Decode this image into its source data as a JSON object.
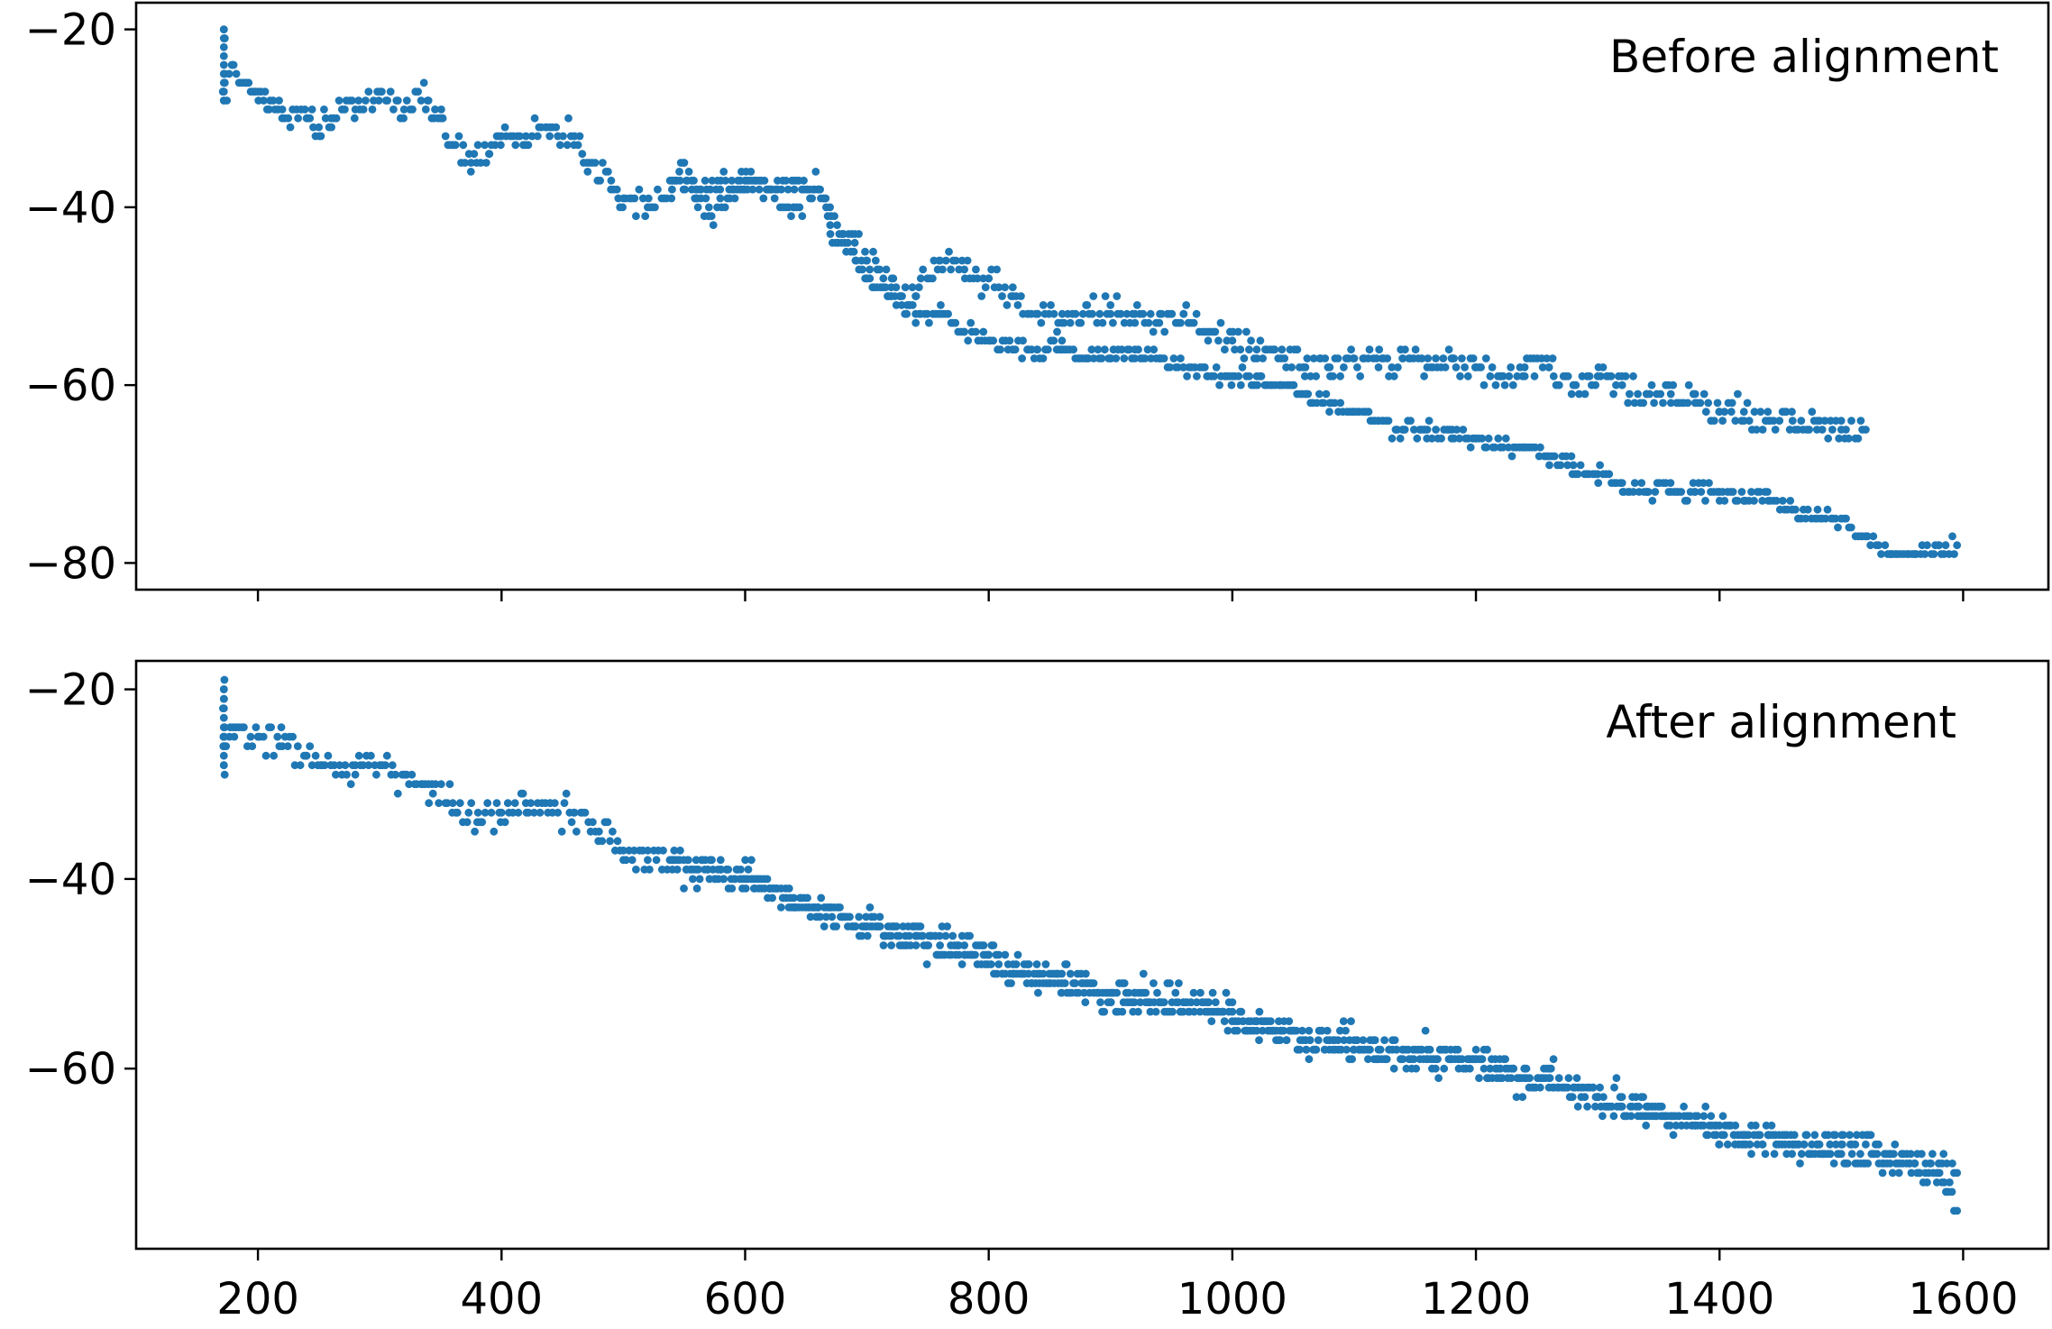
{
  "colors": {
    "marker": "#1f77b4",
    "axes": "#000000",
    "background": "#ffffff"
  },
  "chart_data": [
    {
      "type": "scatter",
      "annotation": "Before alignment",
      "annotation_position": "top-right",
      "x_ticks": [
        200,
        400,
        600,
        800,
        1000,
        1200,
        1400,
        1600
      ],
      "x_tick_labels_shown": false,
      "y_ticks": [
        -20,
        -40,
        -60,
        -80
      ],
      "y_tick_labels": [
        "−20",
        "−40",
        "−60",
        "−80"
      ],
      "xlim": [
        100,
        1670
      ],
      "ylim": [
        -83,
        -17
      ],
      "grid": false,
      "trajectories": [
        {
          "label": "",
          "points": [
            [
              172,
              -20
            ],
            [
              172,
              -25
            ],
            [
              172,
              -28
            ],
            [
              180,
              -24
            ],
            [
              190,
              -26
            ],
            [
              200,
              -27
            ],
            [
              210,
              -28
            ],
            [
              220,
              -29
            ],
            [
              240,
              -30
            ],
            [
              250,
              -31
            ],
            [
              260,
              -30
            ],
            [
              280,
              -29
            ],
            [
              300,
              -27
            ],
            [
              320,
              -29
            ],
            [
              340,
              -28
            ],
            [
              350,
              -30
            ],
            [
              360,
              -33
            ],
            [
              375,
              -35
            ],
            [
              390,
              -34
            ],
            [
              400,
              -32
            ],
            [
              420,
              -32
            ],
            [
              440,
              -31
            ],
            [
              460,
              -32
            ],
            [
              470,
              -35
            ],
            [
              490,
              -37
            ],
            [
              500,
              -39
            ],
            [
              520,
              -40
            ],
            [
              540,
              -38
            ],
            [
              550,
              -35
            ],
            [
              560,
              -39
            ],
            [
              570,
              -41
            ],
            [
              590,
              -38
            ],
            [
              600,
              -37
            ],
            [
              620,
              -38
            ],
            [
              640,
              -40
            ],
            [
              660,
              -38
            ],
            [
              670,
              -43
            ],
            [
              690,
              -44
            ],
            [
              700,
              -46
            ],
            [
              720,
              -49
            ],
            [
              740,
              -50
            ],
            [
              760,
              -46
            ],
            [
              780,
              -47
            ],
            [
              800,
              -48
            ],
            [
              820,
              -50
            ],
            [
              840,
              -52
            ],
            [
              860,
              -53
            ],
            [
              880,
              -51
            ],
            [
              900,
              -52
            ],
            [
              920,
              -52
            ],
            [
              940,
              -53
            ],
            [
              960,
              -52
            ],
            [
              980,
              -54
            ],
            [
              1000,
              -55
            ],
            [
              1020,
              -56
            ],
            [
              1040,
              -57
            ],
            [
              1060,
              -58
            ],
            [
              1080,
              -58
            ],
            [
              1100,
              -57
            ],
            [
              1120,
              -58
            ],
            [
              1140,
              -57
            ],
            [
              1160,
              -58
            ],
            [
              1180,
              -57
            ],
            [
              1200,
              -58
            ],
            [
              1220,
              -59
            ],
            [
              1240,
              -58
            ],
            [
              1260,
              -58
            ],
            [
              1280,
              -60
            ],
            [
              1300,
              -59
            ],
            [
              1320,
              -60
            ],
            [
              1340,
              -61
            ],
            [
              1360,
              -61
            ],
            [
              1380,
              -62
            ],
            [
              1400,
              -63
            ],
            [
              1420,
              -63
            ],
            [
              1440,
              -64
            ],
            [
              1460,
              -64
            ],
            [
              1480,
              -65
            ],
            [
              1500,
              -65
            ],
            [
              1520,
              -65
            ]
          ],
          "spread": 2.2
        },
        {
          "label": "",
          "points": [
            [
              540,
              -37
            ],
            [
              560,
              -38
            ],
            [
              580,
              -37
            ],
            [
              600,
              -37
            ],
            [
              620,
              -38
            ],
            [
              640,
              -37
            ],
            [
              660,
              -38
            ],
            [
              680,
              -43
            ],
            [
              700,
              -48
            ],
            [
              720,
              -50
            ],
            [
              740,
              -52
            ],
            [
              760,
              -52
            ],
            [
              780,
              -54
            ],
            [
              800,
              -55
            ],
            [
              820,
              -56
            ],
            [
              840,
              -56
            ],
            [
              860,
              -56
            ],
            [
              880,
              -57
            ],
            [
              900,
              -57
            ],
            [
              920,
              -56
            ],
            [
              940,
              -57
            ],
            [
              960,
              -58
            ],
            [
              980,
              -59
            ],
            [
              1000,
              -59
            ],
            [
              1020,
              -59
            ],
            [
              1040,
              -60
            ],
            [
              1060,
              -61
            ],
            [
              1080,
              -62
            ],
            [
              1100,
              -63
            ],
            [
              1120,
              -64
            ],
            [
              1140,
              -65
            ],
            [
              1160,
              -65
            ],
            [
              1180,
              -66
            ],
            [
              1200,
              -66
            ],
            [
              1220,
              -67
            ],
            [
              1240,
              -67
            ],
            [
              1260,
              -68
            ],
            [
              1280,
              -69
            ],
            [
              1300,
              -70
            ],
            [
              1320,
              -71
            ],
            [
              1340,
              -72
            ],
            [
              1360,
              -72
            ],
            [
              1380,
              -72
            ],
            [
              1400,
              -72
            ],
            [
              1420,
              -73
            ],
            [
              1440,
              -73
            ],
            [
              1460,
              -74
            ],
            [
              1480,
              -75
            ],
            [
              1500,
              -75
            ],
            [
              1520,
              -77
            ],
            [
              1540,
              -79
            ],
            [
              1560,
              -79
            ],
            [
              1580,
              -78
            ],
            [
              1595,
              -78
            ]
          ],
          "spread": 1.2
        }
      ]
    },
    {
      "type": "scatter",
      "annotation": "After alignment",
      "annotation_position": "top-right",
      "x_ticks": [
        200,
        400,
        600,
        800,
        1000,
        1200,
        1400,
        1600
      ],
      "x_tick_labels": [
        "200",
        "400",
        "600",
        "800",
        "1000",
        "1200",
        "1400",
        "1600"
      ],
      "y_ticks": [
        -20,
        -40,
        -60
      ],
      "y_tick_labels": [
        "−20",
        "−40",
        "−60"
      ],
      "xlim": [
        100,
        1670
      ],
      "ylim": [
        -79,
        -17
      ],
      "grid": false,
      "trajectories": [
        {
          "label": "",
          "points": [
            [
              172,
              -20
            ],
            [
              172,
              -25
            ],
            [
              172,
              -28
            ],
            [
              180,
              -24
            ],
            [
              200,
              -25
            ],
            [
              220,
              -26
            ],
            [
              240,
              -27
            ],
            [
              260,
              -28
            ],
            [
              280,
              -28
            ],
            [
              300,
              -28
            ],
            [
              320,
              -29
            ],
            [
              340,
              -30
            ],
            [
              360,
              -32
            ],
            [
              380,
              -34
            ],
            [
              400,
              -33
            ],
            [
              420,
              -32
            ],
            [
              440,
              -32
            ],
            [
              460,
              -33
            ],
            [
              480,
              -35
            ],
            [
              500,
              -37
            ],
            [
              520,
              -38
            ],
            [
              540,
              -38
            ],
            [
              560,
              -39
            ],
            [
              580,
              -39
            ],
            [
              600,
              -40
            ],
            [
              620,
              -41
            ],
            [
              640,
              -42
            ],
            [
              660,
              -43
            ],
            [
              680,
              -44
            ],
            [
              700,
              -45
            ],
            [
              720,
              -46
            ],
            [
              740,
              -46
            ],
            [
              760,
              -47
            ],
            [
              780,
              -47
            ],
            [
              800,
              -48
            ],
            [
              820,
              -49
            ],
            [
              840,
              -50
            ],
            [
              860,
              -50
            ],
            [
              880,
              -51
            ],
            [
              900,
              -52
            ],
            [
              920,
              -52
            ],
            [
              940,
              -53
            ],
            [
              960,
              -53
            ],
            [
              980,
              -53
            ],
            [
              1000,
              -54
            ],
            [
              1020,
              -55
            ],
            [
              1040,
              -56
            ],
            [
              1060,
              -57
            ],
            [
              1080,
              -57
            ],
            [
              1100,
              -57
            ],
            [
              1120,
              -58
            ],
            [
              1140,
              -58
            ],
            [
              1160,
              -58
            ],
            [
              1180,
              -59
            ],
            [
              1200,
              -59
            ],
            [
              1220,
              -60
            ],
            [
              1240,
              -61
            ],
            [
              1260,
              -61
            ],
            [
              1280,
              -62
            ],
            [
              1300,
              -63
            ],
            [
              1320,
              -64
            ],
            [
              1340,
              -64
            ],
            [
              1360,
              -65
            ],
            [
              1380,
              -65
            ],
            [
              1400,
              -66
            ],
            [
              1420,
              -67
            ],
            [
              1440,
              -67
            ],
            [
              1460,
              -68
            ],
            [
              1480,
              -68
            ],
            [
              1500,
              -68
            ],
            [
              1520,
              -68
            ],
            [
              1540,
              -69
            ],
            [
              1560,
              -70
            ],
            [
              1580,
              -70
            ],
            [
              1595,
              -71
            ]
          ],
          "spread": 2.4
        },
        {
          "label": "",
          "points": [
            [
              540,
              -38
            ],
            [
              580,
              -39
            ],
            [
              620,
              -41
            ],
            [
              660,
              -43
            ],
            [
              700,
              -45
            ],
            [
              740,
              -46
            ],
            [
              780,
              -48
            ],
            [
              820,
              -50
            ],
            [
              860,
              -51
            ],
            [
              900,
              -53
            ],
            [
              940,
              -53
            ],
            [
              980,
              -54
            ],
            [
              1020,
              -56
            ],
            [
              1060,
              -57
            ],
            [
              1100,
              -58
            ],
            [
              1140,
              -59
            ],
            [
              1180,
              -59
            ],
            [
              1220,
              -60
            ],
            [
              1260,
              -62
            ],
            [
              1300,
              -63
            ],
            [
              1340,
              -65
            ],
            [
              1380,
              -66
            ],
            [
              1420,
              -68
            ],
            [
              1460,
              -68
            ],
            [
              1500,
              -69
            ],
            [
              1540,
              -70
            ],
            [
              1580,
              -71
            ],
            [
              1595,
              -75
            ]
          ],
          "spread": 1.5
        }
      ]
    }
  ]
}
